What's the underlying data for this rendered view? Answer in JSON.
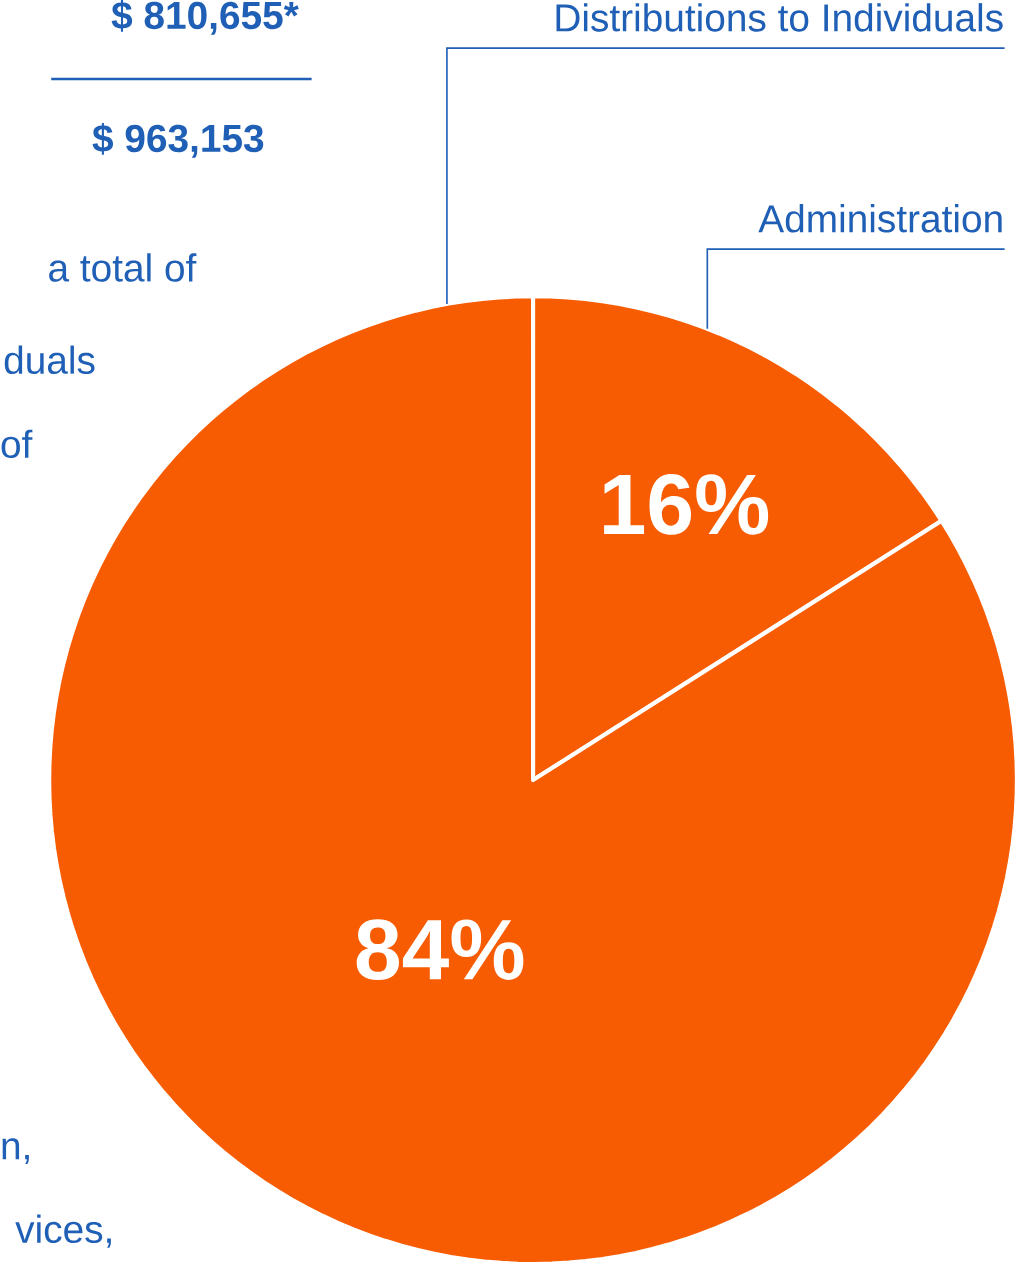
{
  "chart_data": {
    "type": "pie",
    "categories": [
      "Administration",
      "Distributions to Individuals"
    ],
    "values": [
      16,
      84
    ],
    "colors": [
      "#f75c03",
      "#f75c03"
    ],
    "value_labels": [
      "16%",
      "84%"
    ],
    "annotations": [
      "$ 810,655*",
      "$ 963,153",
      "a total of",
      "duals",
      "of",
      "n,",
      "vices,"
    ]
  }
}
